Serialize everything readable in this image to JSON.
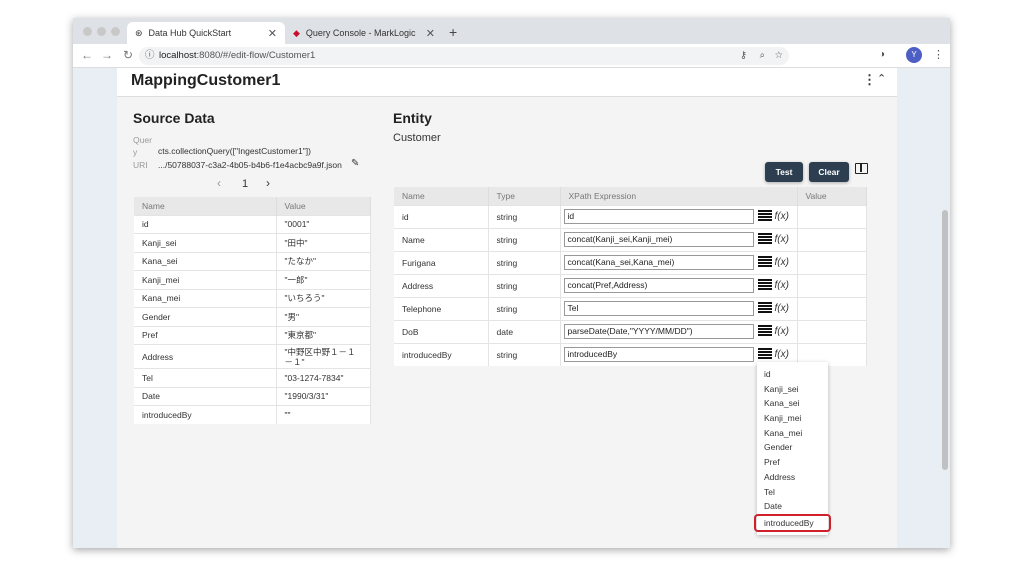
{
  "browser": {
    "tabs": [
      {
        "label": "Data Hub QuickStart"
      },
      {
        "label": "Query Console - MarkLogic"
      }
    ],
    "url_host": "localhost",
    "url_rest": ":8080/#/edit-flow/Customer1",
    "avatar": "Y"
  },
  "page": {
    "title": "MappingCustomer1"
  },
  "source": {
    "heading": "Source Data",
    "query_label": "Quer\ny",
    "query": "cts.collectionQuery([\"IngestCustomer1\"])",
    "uri_label": "URI",
    "uri": ".../50788037-c3a2-4b05-b4b6-f1e4acbc9a9f.json",
    "page": "1",
    "columns": [
      "Name",
      "Value"
    ],
    "rows": [
      [
        "id",
        "\"0001\""
      ],
      [
        "Kanji_sei",
        "\"田中\""
      ],
      [
        "Kana_sei",
        "\"たなか\""
      ],
      [
        "Kanji_mei",
        "\"一郎\""
      ],
      [
        "Kana_mei",
        "\"いちろう\""
      ],
      [
        "Gender",
        "\"男\""
      ],
      [
        "Pref",
        "\"東京都\""
      ],
      [
        "Address",
        "\"中野区中野１－１－１\""
      ],
      [
        "Tel",
        "\"03-1274-7834\""
      ],
      [
        "Date",
        "\"1990/3/31\""
      ],
      [
        "introducedBy",
        "\"\""
      ]
    ]
  },
  "entity": {
    "heading": "Entity",
    "name": "Customer",
    "test_label": "Test",
    "clear_label": "Clear",
    "columns": [
      "Name",
      "Type",
      "XPath Expression",
      "Value"
    ],
    "rows": [
      [
        "id",
        "string",
        "id"
      ],
      [
        "Name",
        "string",
        "concat(Kanji_sei,Kanji_mei)"
      ],
      [
        "Furigana",
        "string",
        "concat(Kana_sei,Kana_mei)"
      ],
      [
        "Address",
        "string",
        "concat(Pref,Address)"
      ],
      [
        "Telephone",
        "string",
        "Tel"
      ],
      [
        "DoB",
        "date",
        "parseDate(Date,\"YYYY/MM/DD\")"
      ],
      [
        "introducedBy",
        "string",
        "introducedBy"
      ]
    ],
    "fx_label": "f(x)"
  },
  "dropdown": {
    "items": [
      "id",
      "Kanji_sei",
      "Kana_sei",
      "Kanji_mei",
      "Kana_mei",
      "Gender",
      "Pref",
      "Address",
      "Tel",
      "Date",
      "introducedBy"
    ],
    "highlighted": "introducedBy",
    "highlight_color": "#d0202a"
  }
}
